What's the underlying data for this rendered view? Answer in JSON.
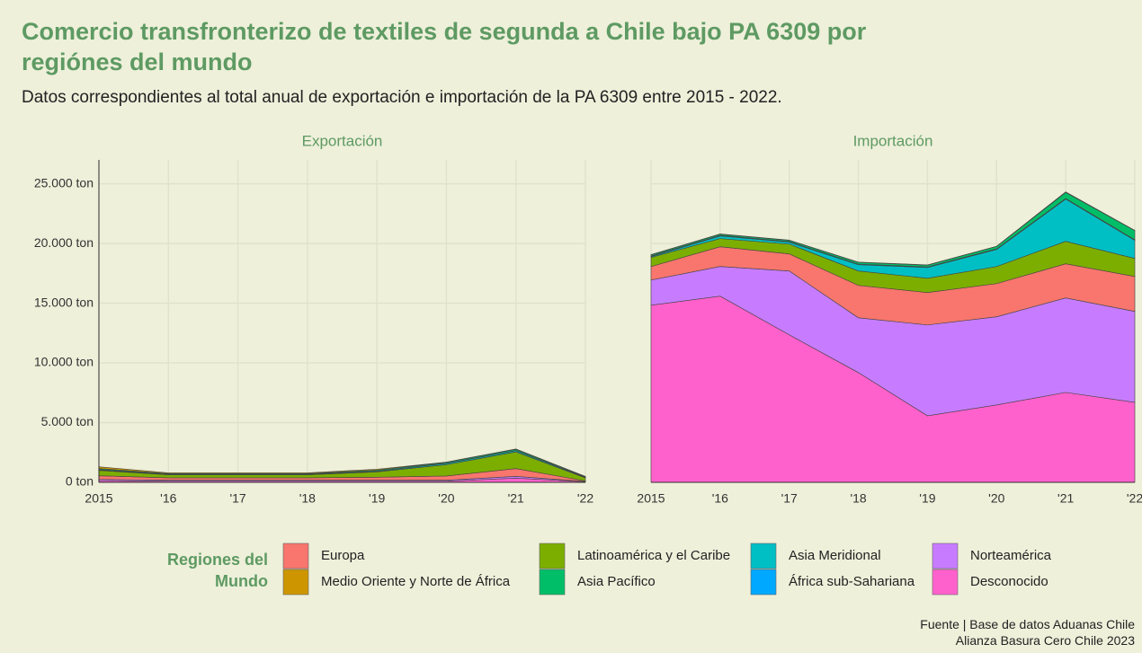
{
  "header": {
    "title": "Comercio transfronterizo de textiles de segunda a Chile bajo PA 6309 por regiónes del mundo",
    "subtitle": "Datos correspondientes al total anual de exportación e importación de la PA 6309 entre 2015 - 2022."
  },
  "legend_title": "Regiones del Mundo",
  "footer": {
    "source": "Fuente | Base de datos Aduanas Chile",
    "credit": "Alianza Basura Cero Chile 2023"
  },
  "chart_data": [
    {
      "type": "stacked_area",
      "title": "Exportación",
      "x": [
        2015,
        2016,
        2017,
        2018,
        2019,
        2020,
        2021,
        2022
      ],
      "xlim": [
        2015,
        2022
      ],
      "xticks": [
        2015,
        {
          "value": 2016,
          "label": "'16"
        },
        {
          "value": 2017,
          "label": "'17"
        },
        {
          "value": 2018,
          "label": "'18"
        },
        {
          "value": 2019,
          "label": "'19"
        },
        {
          "value": 2020,
          "label": "'20"
        },
        {
          "value": 2021,
          "label": "'21"
        },
        {
          "value": 2022,
          "label": "'22"
        }
      ],
      "ylim": [
        0,
        27000
      ],
      "yticks": [
        {
          "value": 0,
          "label": "0 ton"
        },
        {
          "value": 5000,
          "label": "5.000 ton"
        },
        {
          "value": 10000,
          "label": "10.000 ton"
        },
        {
          "value": 15000,
          "label": "15.000 ton"
        },
        {
          "value": 20000,
          "label": "20.000 ton"
        },
        {
          "value": 25000,
          "label": "25.000 ton"
        }
      ],
      "grid": true,
      "series": [
        {
          "name": "Desconocido",
          "color": "#ff61cc",
          "values": [
            150,
            100,
            100,
            100,
            100,
            100,
            350,
            50
          ]
        },
        {
          "name": "Norteamérica",
          "color": "#c77cff",
          "values": [
            100,
            80,
            80,
            80,
            80,
            80,
            150,
            20
          ]
        },
        {
          "name": "Europa",
          "color": "#f8766d",
          "values": [
            300,
            200,
            200,
            200,
            250,
            350,
            650,
            50
          ]
        },
        {
          "name": "Latinoamérica y el Caribe",
          "color": "#7cae00",
          "values": [
            450,
            250,
            250,
            250,
            450,
            950,
            1400,
            250
          ]
        },
        {
          "name": "Asia Meridional",
          "color": "#00bfc4",
          "values": [
            50,
            30,
            30,
            30,
            50,
            100,
            100,
            50
          ]
        },
        {
          "name": "África sub-Sahariana",
          "color": "#00a9ff",
          "values": [
            20,
            20,
            20,
            20,
            20,
            20,
            20,
            20
          ]
        },
        {
          "name": "Asia Pacífico",
          "color": "#00be67",
          "values": [
            80,
            60,
            60,
            60,
            80,
            80,
            100,
            40
          ]
        },
        {
          "name": "Medio Oriente y Norte de África",
          "color": "#cd9600",
          "values": [
            150,
            60,
            60,
            60,
            70,
            20,
            30,
            20
          ]
        }
      ]
    },
    {
      "type": "stacked_area",
      "title": "Importación",
      "x": [
        2015,
        2016,
        2017,
        2018,
        2019,
        2020,
        2021,
        2022
      ],
      "xlim": [
        2015,
        2022
      ],
      "xticks": [
        2015,
        {
          "value": 2016,
          "label": "'16"
        },
        {
          "value": 2017,
          "label": "'17"
        },
        {
          "value": 2018,
          "label": "'18"
        },
        {
          "value": 2019,
          "label": "'19"
        },
        {
          "value": 2020,
          "label": "'20"
        },
        {
          "value": 2021,
          "label": "'21"
        },
        {
          "value": 2022,
          "label": "'22"
        }
      ],
      "ylim": [
        0,
        27000
      ],
      "grid": true,
      "series": [
        {
          "color": "#ff61cc",
          "values": [
            14830,
            15590,
            12350,
            9190,
            5570,
            6480,
            7530,
            6700
          ]
        },
        {
          "color": "#c77cff",
          "values": [
            2110,
            2480,
            5350,
            4590,
            7610,
            7380,
            7910,
            7610
          ]
        },
        {
          "color": "#f8766d",
          "values": [
            1130,
            1660,
            1430,
            2710,
            2710,
            2780,
            2860,
            2930
          ]
        },
        {
          "color": "#7cae00",
          "values": [
            760,
            680,
            820,
            1210,
            1200,
            1430,
            1880,
            1510
          ]
        },
        {
          "color": "#00bfc4",
          "values": [
            70,
            220,
            160,
            520,
            900,
            1430,
            3540,
            1510
          ]
        },
        {
          "color": "#00a9ff",
          "values": [
            50,
            50,
            50,
            50,
            50,
            50,
            50,
            50
          ]
        },
        {
          "color": "#00be67",
          "values": [
            100,
            100,
            100,
            150,
            150,
            200,
            500,
            770
          ]
        },
        {
          "color": "#cd9600",
          "values": [
            20,
            20,
            20,
            20,
            20,
            20,
            50,
            20
          ]
        }
      ]
    }
  ]
}
